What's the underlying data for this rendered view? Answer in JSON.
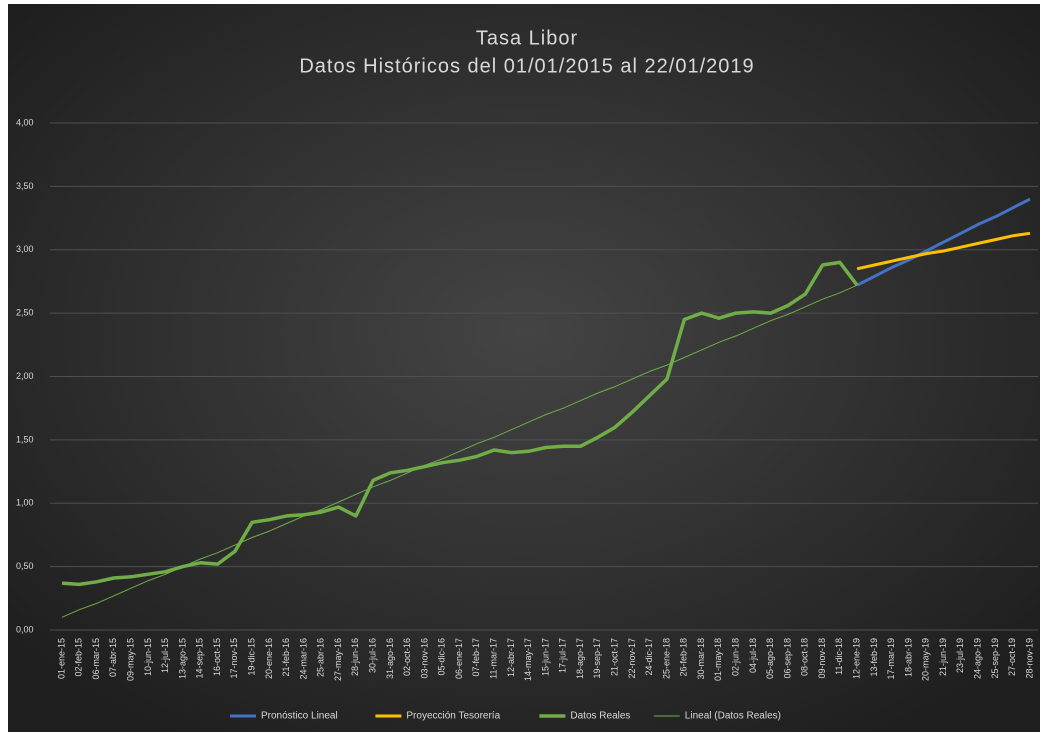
{
  "chart_data": {
    "type": "line",
    "title": "Tasa Libor",
    "subtitle": "Datos Históricos del 01/01/2015 al 22/01/2019",
    "categories": [
      "01-ene-15",
      "02-feb-15",
      "06-mar-15",
      "07-abr-15",
      "09-may-15",
      "10-jun-15",
      "12-jul-15",
      "13-ago-15",
      "14-sep-15",
      "16-oct-15",
      "17-nov-15",
      "19-dic-15",
      "20-ene-16",
      "21-feb-16",
      "24-mar-16",
      "25-abr-16",
      "27-may-16",
      "28-jun-16",
      "30-jul-16",
      "31-ago-16",
      "02-oct-16",
      "03-nov-16",
      "05-dic-16",
      "06-ene-17",
      "07-feb-17",
      "11-mar-17",
      "12-abr-17",
      "14-may-17",
      "15-jun-17",
      "17-jul-17",
      "18-ago-17",
      "19-sep-17",
      "21-oct-17",
      "22-nov-17",
      "24-dic-17",
      "25-ene-18",
      "26-feb-18",
      "30-mar-18",
      "01-may-18",
      "02-jun-18",
      "04-jul-18",
      "05-ago-18",
      "06-sep-18",
      "08-oct-18",
      "09-nov-18",
      "11-dic-18",
      "12-ene-19",
      "13-feb-19",
      "17-mar-19",
      "18-abr-19",
      "20-may-19",
      "21-jun-19",
      "23-jul-19",
      "24-ago-19",
      "25-sep-19",
      "27-oct-19",
      "28-nov-19"
    ],
    "series": [
      {
        "name": "Pronóstico Lineal",
        "color": "#4472c4",
        "width": 3,
        "values": [
          null,
          null,
          null,
          null,
          null,
          null,
          null,
          null,
          null,
          null,
          null,
          null,
          null,
          null,
          null,
          null,
          null,
          null,
          null,
          null,
          null,
          null,
          null,
          null,
          null,
          null,
          null,
          null,
          null,
          null,
          null,
          null,
          null,
          null,
          null,
          null,
          null,
          null,
          null,
          null,
          null,
          null,
          null,
          null,
          null,
          null,
          2.72,
          2.79,
          2.86,
          2.92,
          2.99,
          3.06,
          3.13,
          3.2,
          3.26,
          3.33,
          3.4
        ]
      },
      {
        "name": "Proyección Tesorería",
        "color": "#ffc000",
        "width": 3,
        "values": [
          null,
          null,
          null,
          null,
          null,
          null,
          null,
          null,
          null,
          null,
          null,
          null,
          null,
          null,
          null,
          null,
          null,
          null,
          null,
          null,
          null,
          null,
          null,
          null,
          null,
          null,
          null,
          null,
          null,
          null,
          null,
          null,
          null,
          null,
          null,
          null,
          null,
          null,
          null,
          null,
          null,
          null,
          null,
          null,
          null,
          null,
          2.85,
          2.88,
          2.91,
          2.94,
          2.97,
          2.99,
          3.02,
          3.05,
          3.08,
          3.11,
          3.13
        ]
      },
      {
        "name": "Datos Reales",
        "color": "#70ad47",
        "width": 3.5,
        "values": [
          0.37,
          0.36,
          0.38,
          0.41,
          0.42,
          0.44,
          0.46,
          0.5,
          0.53,
          0.52,
          0.62,
          0.85,
          0.87,
          0.9,
          0.91,
          0.93,
          0.97,
          0.9,
          1.18,
          1.24,
          1.26,
          1.29,
          1.32,
          1.34,
          1.37,
          1.42,
          1.4,
          1.41,
          1.44,
          1.45,
          1.45,
          1.52,
          1.6,
          1.72,
          1.85,
          1.98,
          2.45,
          2.5,
          2.46,
          2.5,
          2.51,
          2.5,
          2.56,
          2.65,
          2.88,
          2.9,
          2.72,
          null,
          null,
          null,
          null,
          null,
          null,
          null,
          null,
          null,
          null
        ]
      },
      {
        "name": "Lineal (Datos Reales)",
        "color": "#70ad47",
        "width": 1,
        "values": [
          0.1,
          0.16,
          0.21,
          0.27,
          0.33,
          0.39,
          0.44,
          0.5,
          0.56,
          0.61,
          0.67,
          0.73,
          0.78,
          0.84,
          0.9,
          0.95,
          1.01,
          1.07,
          1.13,
          1.18,
          1.24,
          1.3,
          1.35,
          1.41,
          1.47,
          1.52,
          1.58,
          1.64,
          1.7,
          1.75,
          1.81,
          1.87,
          1.92,
          1.98,
          2.04,
          2.09,
          2.15,
          2.21,
          2.27,
          2.32,
          2.38,
          2.44,
          2.49,
          2.55,
          2.61,
          2.66,
          2.72,
          null,
          null,
          null,
          null,
          null,
          null,
          null,
          null,
          null,
          null
        ]
      }
    ],
    "ylim": [
      0,
      4
    ],
    "yticks": [
      {
        "value": 0,
        "label": "0,00"
      },
      {
        "value": 0.5,
        "label": "0,50"
      },
      {
        "value": 1,
        "label": "1,00"
      },
      {
        "value": 1.5,
        "label": "1,50"
      },
      {
        "value": 2,
        "label": "2,00"
      },
      {
        "value": 2.5,
        "label": "2,50"
      },
      {
        "value": 3,
        "label": "3,00"
      },
      {
        "value": 3.5,
        "label": "3,50"
      },
      {
        "value": 4,
        "label": "4,00"
      }
    ],
    "grid": true,
    "legend": "bottom"
  }
}
